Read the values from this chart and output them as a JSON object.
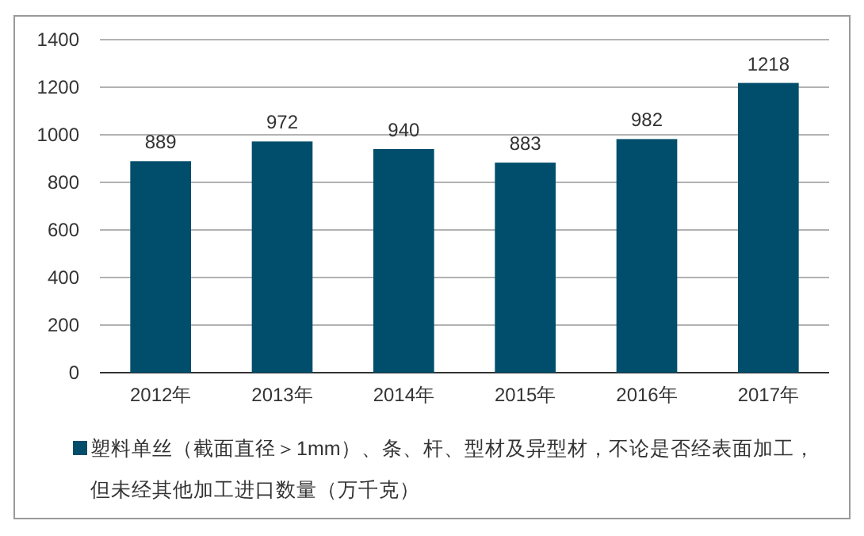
{
  "chart_data": {
    "type": "bar",
    "categories": [
      "2012年",
      "2013年",
      "2014年",
      "2015年",
      "2016年",
      "2017年"
    ],
    "series": [
      {
        "name": "塑料单丝（截面直径＞1mm）、条、杆、型材及异型材，不论是否经表面加工，但未经其他加工进口数量（万千克）",
        "color": "#004e6b",
        "values": [
          889,
          972,
          940,
          883,
          982,
          1218
        ]
      }
    ],
    "ylim": [
      0,
      1400
    ],
    "yticks": [
      0,
      200,
      400,
      600,
      800,
      1000,
      1200,
      1400
    ],
    "grid": "y",
    "legend": "bottom",
    "data_labels": true
  }
}
